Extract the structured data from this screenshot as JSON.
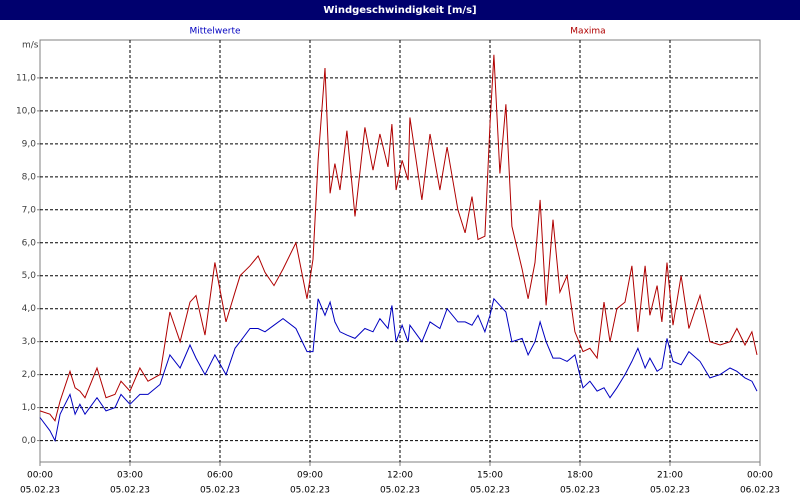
{
  "chart_data": {
    "type": "line",
    "title": "Windgeschwindigkeit [m/s]",
    "y_unit": "m/s",
    "x": [
      0,
      0.33,
      0.5,
      0.67,
      1.0,
      1.17,
      1.33,
      1.5,
      1.9,
      2.2,
      2.5,
      2.7,
      3.0,
      3.33,
      3.6,
      4.0,
      4.33,
      4.67,
      5.0,
      5.2,
      5.5,
      5.83,
      6.2,
      6.5,
      6.67,
      7.0,
      7.27,
      7.5,
      7.8,
      8.1,
      8.53,
      8.9,
      9.1,
      9.27,
      9.5,
      9.67,
      9.83,
      10.0,
      10.23,
      10.5,
      10.83,
      11.1,
      11.33,
      11.6,
      11.73,
      11.87,
      12.07,
      12.27,
      12.33,
      12.73,
      13.0,
      13.33,
      13.57,
      13.93,
      14.17,
      14.4,
      14.6,
      14.83,
      15.0,
      15.13,
      15.33,
      15.53,
      15.73,
      16.07,
      16.27,
      16.5,
      16.67,
      16.87,
      17.1,
      17.33,
      17.57,
      17.83,
      18.1,
      18.33,
      18.57,
      18.8,
      19.0,
      19.23,
      19.5,
      19.73,
      19.93,
      20.17,
      20.33,
      20.57,
      20.73,
      20.9,
      21.1,
      21.37,
      21.63,
      22.0,
      22.33,
      22.67,
      23.0,
      23.23,
      23.5,
      23.73,
      23.9
    ],
    "series": [
      {
        "name": "Mittelwerte",
        "color": "#0000c0",
        "values": [
          0.7,
          0.3,
          0.0,
          0.8,
          1.4,
          0.8,
          1.1,
          0.8,
          1.3,
          0.9,
          1.0,
          1.4,
          1.1,
          1.4,
          1.4,
          1.7,
          2.6,
          2.2,
          2.9,
          2.5,
          2.0,
          2.6,
          2.0,
          2.8,
          3.0,
          3.4,
          3.4,
          3.3,
          3.5,
          3.7,
          3.4,
          2.7,
          2.7,
          4.3,
          3.8,
          4.2,
          3.6,
          3.3,
          3.2,
          3.1,
          3.4,
          3.3,
          3.7,
          3.4,
          4.1,
          3.0,
          3.5,
          3.0,
          3.5,
          3.0,
          3.6,
          3.4,
          4.0,
          3.6,
          3.6,
          3.5,
          3.8,
          3.3,
          3.8,
          4.3,
          4.1,
          3.9,
          3.0,
          3.1,
          2.6,
          3.0,
          3.6,
          3.0,
          2.5,
          2.5,
          2.4,
          2.6,
          1.6,
          1.8,
          1.5,
          1.6,
          1.3,
          1.6,
          2.0,
          2.4,
          2.8,
          2.2,
          2.5,
          2.1,
          2.2,
          3.1,
          2.4,
          2.3,
          2.7,
          2.4,
          1.9,
          2.0,
          2.2,
          2.1,
          1.9,
          1.8,
          1.5
        ]
      },
      {
        "name": "Maxima",
        "color": "#b00000",
        "values": [
          0.9,
          0.8,
          0.6,
          1.2,
          2.1,
          1.6,
          1.5,
          1.3,
          2.2,
          1.3,
          1.4,
          1.8,
          1.5,
          2.2,
          1.8,
          2.0,
          3.9,
          3.0,
          4.2,
          4.4,
          3.2,
          5.4,
          3.6,
          4.5,
          5.0,
          5.3,
          5.6,
          5.1,
          4.7,
          5.2,
          6.0,
          4.3,
          5.5,
          8.5,
          11.3,
          7.5,
          8.4,
          7.6,
          9.4,
          6.8,
          9.5,
          8.2,
          9.3,
          8.3,
          9.6,
          7.6,
          8.5,
          7.9,
          9.8,
          7.3,
          9.3,
          7.6,
          8.9,
          7.0,
          6.3,
          7.4,
          6.1,
          6.2,
          9.6,
          11.7,
          8.1,
          10.2,
          6.5,
          5.2,
          4.3,
          5.4,
          7.3,
          4.1,
          6.7,
          4.5,
          5.0,
          3.3,
          2.7,
          2.8,
          2.5,
          4.2,
          3.0,
          4.0,
          4.2,
          5.3,
          3.3,
          5.3,
          3.8,
          4.7,
          3.6,
          5.4,
          3.5,
          5.0,
          3.4,
          4.4,
          3.0,
          2.9,
          3.0,
          3.4,
          2.9,
          3.3,
          2.6
        ]
      }
    ],
    "xlim": [
      0,
      24
    ],
    "xticks": [
      {
        "value": 0,
        "label": "00:00"
      },
      {
        "value": 3,
        "label": "03:00"
      },
      {
        "value": 6,
        "label": "06:00"
      },
      {
        "value": 9,
        "label": "09:00"
      },
      {
        "value": 12,
        "label": "12:00"
      },
      {
        "value": 15,
        "label": "15:00"
      },
      {
        "value": 18,
        "label": "18:00"
      },
      {
        "value": 21,
        "label": "21:00"
      },
      {
        "value": 24,
        "label": "00:00"
      }
    ],
    "xtick_dates": [
      "05.02.23",
      "05.02.23",
      "05.02.23",
      "05.02.23",
      "05.02.23",
      "05.02.23",
      "05.02.23",
      "05.02.23",
      "06.02.23"
    ],
    "ylim": [
      -0.65,
      12.15
    ],
    "yticks": [
      {
        "value": 0,
        "label": "0,0"
      },
      {
        "value": 1,
        "label": "1,0"
      },
      {
        "value": 2,
        "label": "2,0"
      },
      {
        "value": 3,
        "label": "3,0"
      },
      {
        "value": 4,
        "label": "4,0"
      },
      {
        "value": 5,
        "label": "5,0"
      },
      {
        "value": 6,
        "label": "6,0"
      },
      {
        "value": 7,
        "label": "7,0"
      },
      {
        "value": 8,
        "label": "8,0"
      },
      {
        "value": 9,
        "label": "9,0"
      },
      {
        "value": 10,
        "label": "10,0"
      },
      {
        "value": 11,
        "label": "11,0"
      }
    ],
    "grid": true
  }
}
